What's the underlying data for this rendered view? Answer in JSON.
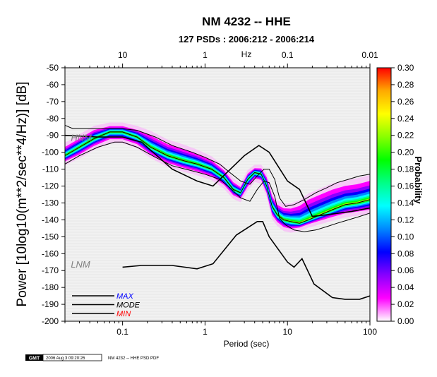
{
  "header": {
    "title": "NM 4232 -- HHE",
    "subtitle": "127 PSDs : 2006:212 - 2006:214"
  },
  "footer": {
    "logo_text": "GMT",
    "timestamp": "2006 Aug  3 09:20:26",
    "caption": "NM 4232 -- HHE PSD PDF"
  },
  "chart_data": {
    "type": "heatmap",
    "title": "NM 4232 -- HHE",
    "subtitle": "127 PSDs : 2006:212 - 2006:214",
    "xlabel": "Period (sec)",
    "ylabel": "Power [10log10(m**2/sec**4/Hz)] [dB]",
    "top_axis_label": "Hz",
    "x_scale": "log",
    "xlim": [
      0.02,
      100
    ],
    "ylim": [
      -200,
      -50
    ],
    "x_ticks": [
      {
        "value": 0.1,
        "label": "0.1"
      },
      {
        "value": 1,
        "label": "1"
      },
      {
        "value": 10,
        "label": "10"
      },
      {
        "value": 100,
        "label": "100"
      }
    ],
    "top_ticks": [
      {
        "value": 0.1,
        "label": "10"
      },
      {
        "value": 1,
        "label": "1"
      },
      {
        "value": 10,
        "label": "0.1"
      },
      {
        "value": 100,
        "label": "0.01"
      }
    ],
    "y_ticks": [
      -50,
      -60,
      -70,
      -80,
      -90,
      -100,
      -110,
      -120,
      -130,
      -140,
      -150,
      -160,
      -170,
      -180,
      -190,
      -200
    ],
    "colorbar": {
      "label": "Probability",
      "min": 0,
      "max": 0.3,
      "ticks": [
        "0.00",
        "0.02",
        "0.04",
        "0.06",
        "0.08",
        "0.10",
        "0.12",
        "0.14",
        "0.16",
        "0.18",
        "0.20",
        "0.22",
        "0.24",
        "0.26",
        "0.28",
        "0.30"
      ],
      "colors": [
        "#ffffff",
        "#ff00ff",
        "#8800ff",
        "#0000ff",
        "#0088ff",
        "#00ffff",
        "#00ff88",
        "#00ff00",
        "#88ff00",
        "#ffff00",
        "#ffaa00",
        "#ff0000"
      ]
    },
    "pdf_band": {
      "period": [
        0.02,
        0.03,
        0.045,
        0.07,
        0.1,
        0.15,
        0.22,
        0.35,
        0.55,
        0.8,
        1.2,
        1.7,
        2.2,
        2.7,
        3.3,
        4,
        4.8,
        5.6,
        6.5,
        7.5,
        9,
        11,
        14,
        18,
        25,
        35,
        50,
        70,
        100
      ],
      "mode": [
        -102,
        -97,
        -92,
        -88,
        -88,
        -91,
        -97,
        -102,
        -105,
        -107,
        -110,
        -115,
        -122,
        -124,
        -116,
        -112,
        -113,
        -120,
        -132,
        -137,
        -140,
        -141,
        -142,
        -140,
        -137,
        -134,
        -131,
        -130,
        -128
      ],
      "upper": [
        -96,
        -91,
        -86,
        -84,
        -84,
        -86,
        -89,
        -94,
        -97,
        -100,
        -104,
        -110,
        -117,
        -120,
        -112,
        -109,
        -109,
        -114,
        -125,
        -130,
        -132,
        -132,
        -130,
        -126,
        -123,
        -120,
        -118,
        -117,
        -115
      ],
      "lower": [
        -106,
        -102,
        -97,
        -93,
        -93,
        -96,
        -102,
        -107,
        -110,
        -112,
        -115,
        -120,
        -126,
        -128,
        -121,
        -116,
        -117,
        -125,
        -138,
        -142,
        -145,
        -146,
        -145,
        -143,
        -141,
        -139,
        -137,
        -136,
        -135
      ]
    },
    "series": [
      {
        "name": "MAX",
        "color": "#000000",
        "x": [
          0.02,
          0.025,
          0.04,
          0.065,
          0.1,
          0.15,
          0.25,
          0.4,
          0.7,
          1,
          1.5,
          2,
          2.7,
          3.5,
          4.3,
          5.2,
          6,
          7,
          8,
          9.5,
          12,
          16,
          22,
          30,
          40,
          55,
          75,
          100
        ],
        "y": [
          -84,
          -86,
          -86,
          -86,
          -86,
          -87,
          -91,
          -96,
          -100,
          -103,
          -107,
          -112,
          -117,
          -119,
          -114,
          -110,
          -110,
          -116,
          -127,
          -132,
          -131,
          -128,
          -124,
          -121,
          -118,
          -116,
          -114,
          -113
        ]
      },
      {
        "name": "MODE",
        "color": "#000000",
        "x": [
          0.02,
          0.03,
          0.045,
          0.07,
          0.1,
          0.15,
          0.22,
          0.35,
          0.55,
          0.8,
          1.2,
          1.7,
          2.2,
          2.7,
          3.3,
          4,
          4.8,
          5.6,
          6.5,
          7.5,
          9,
          11,
          14,
          18,
          25,
          35,
          50,
          70,
          100
        ],
        "y": [
          -102,
          -97,
          -92,
          -88,
          -88,
          -91,
          -97,
          -102,
          -105,
          -107,
          -110,
          -115,
          -122,
          -124,
          -116,
          -112,
          -113,
          -120,
          -132,
          -137,
          -140,
          -141,
          -142,
          -140,
          -137,
          -134,
          -131,
          -130,
          -128
        ]
      },
      {
        "name": "MIN",
        "color": "#000000",
        "x": [
          0.02,
          0.03,
          0.05,
          0.08,
          0.1,
          0.15,
          0.25,
          0.4,
          0.7,
          1,
          1.5,
          2,
          2.7,
          3.5,
          4.3,
          5.2,
          6,
          7,
          8,
          9.5,
          12,
          16,
          22,
          30,
          40,
          55,
          75,
          100
        ],
        "y": [
          -107,
          -102,
          -97,
          -94,
          -94,
          -97,
          -103,
          -108,
          -111,
          -113,
          -116,
          -121,
          -127,
          -129,
          -122,
          -117,
          -118,
          -126,
          -139,
          -143,
          -146,
          -147,
          -146,
          -144,
          -142,
          -140,
          -138,
          -136
        ]
      },
      {
        "name": "NHNM",
        "color": "#000000",
        "x": [
          0.02,
          0.05,
          0.1,
          0.17,
          0.4,
          0.8,
          1.25,
          3.0,
          4.5,
          6.0,
          10,
          14,
          20,
          30,
          60,
          100
        ],
        "y": [
          -90,
          -91,
          -91,
          -94,
          -110,
          -117,
          -120,
          -102,
          -96,
          -100,
          -117,
          -122,
          -138,
          -137,
          -135,
          -133
        ]
      },
      {
        "name": "NLNM",
        "color": "#000000",
        "x": [
          0.1,
          0.17,
          0.4,
          0.8,
          1.25,
          2.4,
          4.3,
          5.0,
          6.0,
          10,
          12,
          15,
          21,
          35,
          50,
          75,
          100
        ],
        "y": [
          -168,
          -167,
          -167,
          -169,
          -166,
          -149,
          -141,
          -141,
          -150,
          -165,
          -168,
          -163,
          -178,
          -186,
          -187,
          -187,
          -185
        ]
      }
    ],
    "annotations": [
      {
        "text": "HNM",
        "x": 0.025,
        "y": -92
      },
      {
        "text": "LNM",
        "x": 0.025,
        "y": -167
      }
    ],
    "legend": {
      "placement": "bottom-left",
      "entries": [
        {
          "label": "MAX",
          "color": "#0000ff"
        },
        {
          "label": "MODE",
          "color": "#000000"
        },
        {
          "label": "MIN",
          "color": "#ff0000"
        }
      ]
    }
  }
}
